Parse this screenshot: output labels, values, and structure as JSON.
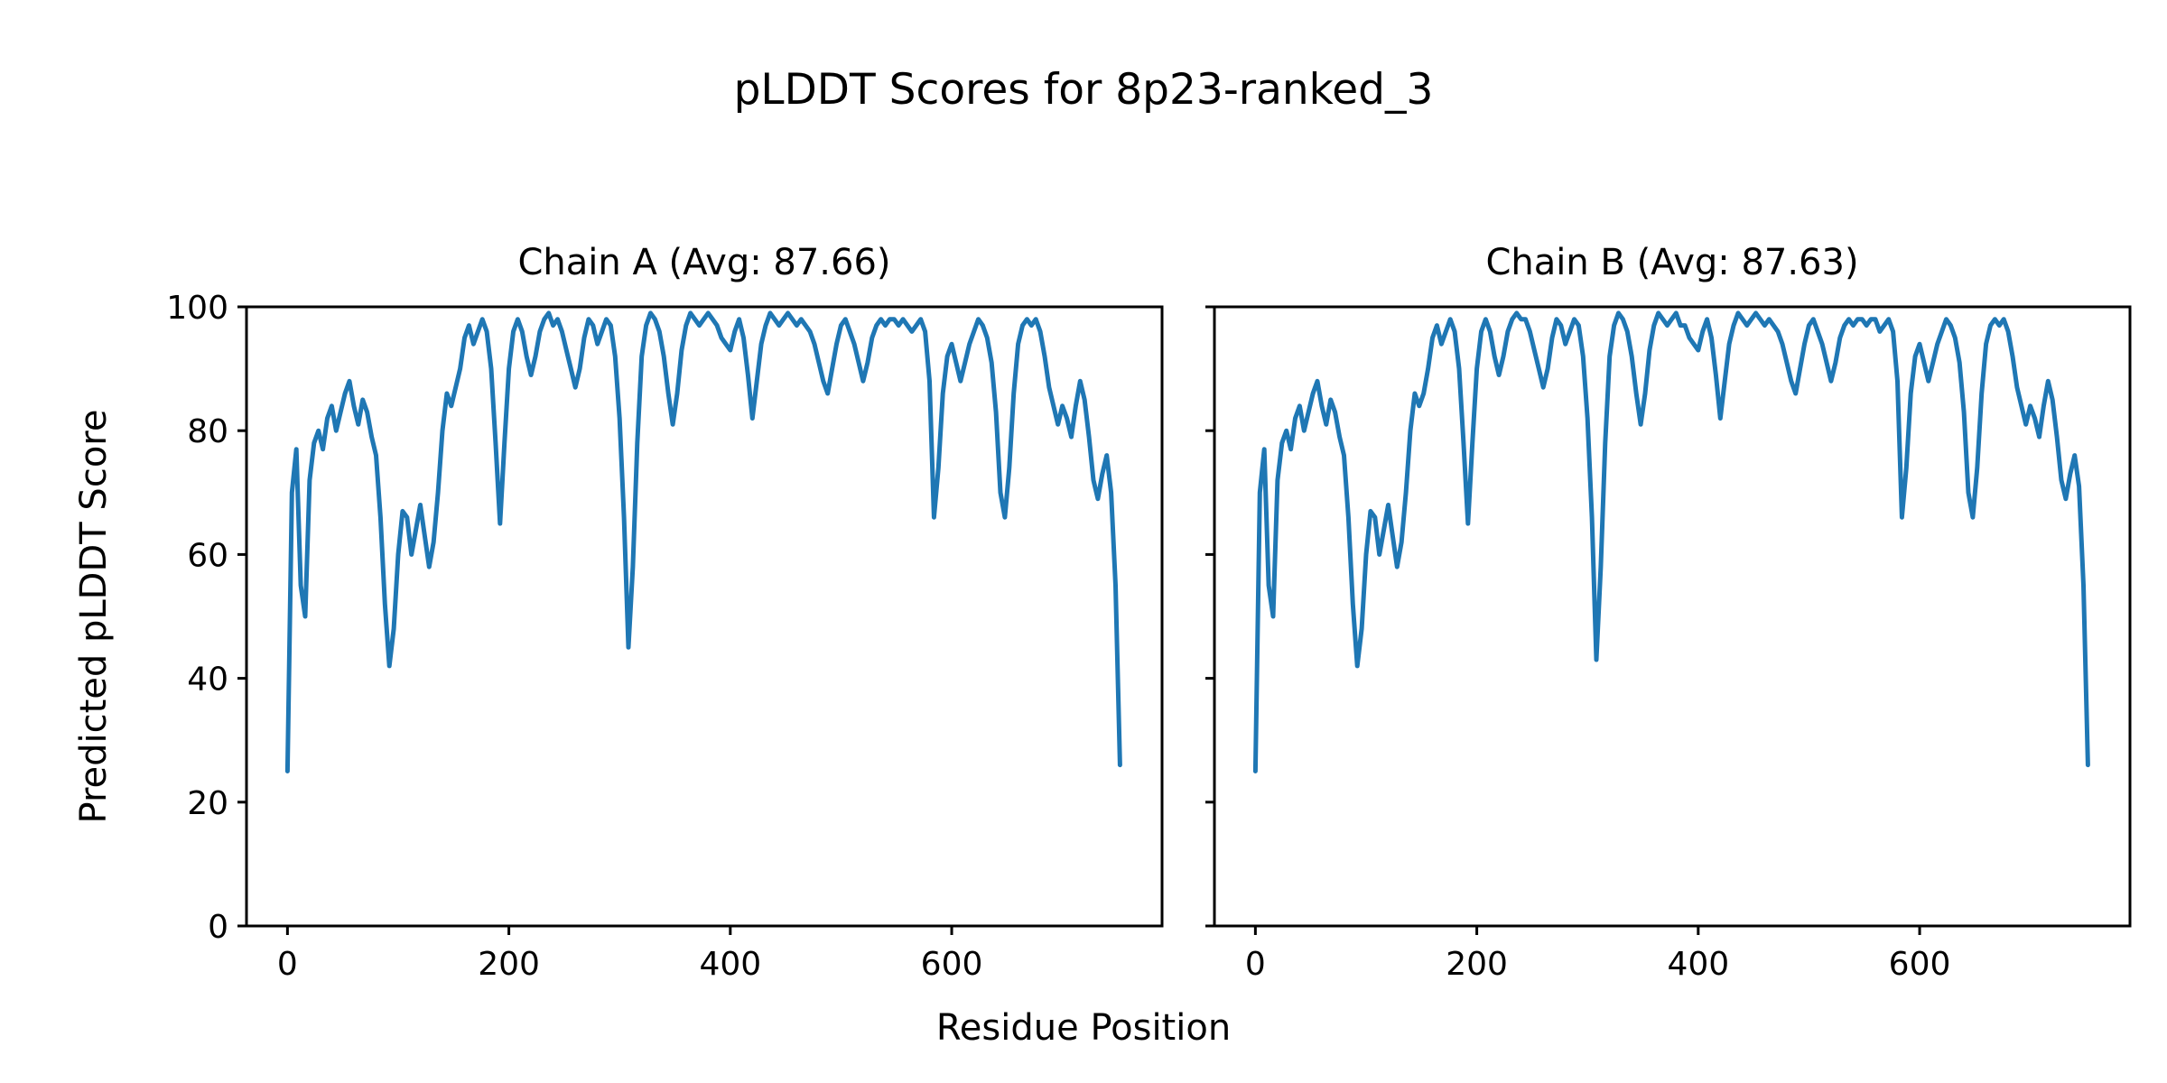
{
  "figure": {
    "suptitle": "pLDDT Scores for 8p23-ranked_3",
    "xlabel": "Residue Position",
    "ylabel": "Predicted pLDDT Score",
    "background_color": "#ffffff",
    "text_color": "#000000",
    "spine_color": "#000000"
  },
  "chart_data": [
    {
      "type": "line",
      "title": "Chain A (Avg: 87.66)",
      "series_name": "Chain A pLDDT",
      "avg": 87.66,
      "color": "#1f77b4",
      "xlabel": "Residue Position",
      "ylabel": "Predicted pLDDT Score",
      "xlim": [
        -37,
        790
      ],
      "ylim": [
        0,
        100
      ],
      "x_ticks": [
        0,
        200,
        400,
        600
      ],
      "y_ticks": [
        0,
        20,
        40,
        60,
        80,
        100
      ],
      "show_y_tick_labels": true,
      "grid": false,
      "legend": "none",
      "x": [
        0,
        4,
        8,
        12,
        16,
        20,
        24,
        28,
        32,
        36,
        40,
        44,
        48,
        52,
        56,
        60,
        64,
        68,
        72,
        76,
        80,
        84,
        88,
        92,
        96,
        100,
        104,
        108,
        112,
        116,
        120,
        124,
        128,
        132,
        136,
        140,
        144,
        148,
        152,
        156,
        160,
        164,
        168,
        172,
        176,
        180,
        184,
        188,
        192,
        196,
        200,
        204,
        208,
        212,
        216,
        220,
        224,
        228,
        232,
        236,
        240,
        244,
        248,
        252,
        256,
        260,
        264,
        268,
        272,
        276,
        280,
        284,
        288,
        292,
        296,
        300,
        304,
        308,
        312,
        316,
        320,
        324,
        328,
        332,
        336,
        340,
        344,
        348,
        352,
        356,
        360,
        364,
        368,
        372,
        376,
        380,
        384,
        388,
        392,
        396,
        400,
        404,
        408,
        412,
        416,
        420,
        424,
        428,
        432,
        436,
        440,
        444,
        448,
        452,
        456,
        460,
        464,
        468,
        472,
        476,
        480,
        484,
        488,
        492,
        496,
        500,
        504,
        508,
        512,
        516,
        520,
        524,
        528,
        532,
        536,
        540,
        544,
        548,
        552,
        556,
        560,
        564,
        568,
        572,
        576,
        580,
        584,
        588,
        592,
        596,
        600,
        604,
        608,
        612,
        616,
        620,
        624,
        628,
        632,
        636,
        640,
        644,
        648,
        652,
        656,
        660,
        664,
        668,
        672,
        676,
        680,
        684,
        688,
        692,
        696,
        700,
        704,
        708,
        712,
        716,
        720,
        724,
        728,
        732,
        736,
        740,
        744,
        748,
        752
      ],
      "y": [
        25,
        70,
        77,
        55,
        50,
        72,
        78,
        80,
        77,
        82,
        84,
        80,
        83,
        86,
        88,
        84,
        81,
        85,
        83,
        79,
        76,
        66,
        52,
        42,
        48,
        60,
        67,
        66,
        60,
        64,
        68,
        63,
        58,
        62,
        70,
        80,
        86,
        84,
        87,
        90,
        95,
        97,
        94,
        96,
        98,
        96,
        90,
        78,
        65,
        78,
        90,
        96,
        98,
        96,
        92,
        89,
        92,
        96,
        98,
        99,
        97,
        98,
        96,
        93,
        90,
        87,
        90,
        95,
        98,
        97,
        94,
        96,
        98,
        97,
        92,
        82,
        66,
        45,
        58,
        78,
        92,
        97,
        99,
        98,
        96,
        92,
        86,
        81,
        86,
        93,
        97,
        99,
        98,
        97,
        98,
        99,
        98,
        97,
        95,
        94,
        93,
        96,
        98,
        95,
        89,
        82,
        88,
        94,
        97,
        99,
        98,
        97,
        98,
        99,
        98,
        97,
        98,
        97,
        96,
        94,
        91,
        88,
        86,
        90,
        94,
        97,
        98,
        96,
        94,
        91,
        88,
        91,
        95,
        97,
        98,
        97,
        98,
        98,
        97,
        98,
        97,
        96,
        97,
        98,
        96,
        88,
        66,
        74,
        86,
        92,
        94,
        91,
        88,
        91,
        94,
        96,
        98,
        97,
        95,
        91,
        83,
        70,
        66,
        74,
        86,
        94,
        97,
        98,
        97,
        98,
        96,
        92,
        87,
        84,
        81,
        84,
        82,
        79,
        84,
        88,
        85,
        79,
        72,
        69,
        73,
        76,
        70,
        55,
        26
      ]
    },
    {
      "type": "line",
      "title": "Chain B (Avg: 87.63)",
      "series_name": "Chain B pLDDT",
      "avg": 87.63,
      "color": "#1f77b4",
      "xlabel": "Residue Position",
      "ylabel": "Predicted pLDDT Score",
      "xlim": [
        -37,
        790
      ],
      "ylim": [
        0,
        100
      ],
      "x_ticks": [
        0,
        200,
        400,
        600
      ],
      "y_ticks": [
        0,
        20,
        40,
        60,
        80,
        100
      ],
      "show_y_tick_labels": false,
      "grid": false,
      "legend": "none",
      "x": [
        0,
        4,
        8,
        12,
        16,
        20,
        24,
        28,
        32,
        36,
        40,
        44,
        48,
        52,
        56,
        60,
        64,
        68,
        72,
        76,
        80,
        84,
        88,
        92,
        96,
        100,
        104,
        108,
        112,
        116,
        120,
        124,
        128,
        132,
        136,
        140,
        144,
        148,
        152,
        156,
        160,
        164,
        168,
        172,
        176,
        180,
        184,
        188,
        192,
        196,
        200,
        204,
        208,
        212,
        216,
        220,
        224,
        228,
        232,
        236,
        240,
        244,
        248,
        252,
        256,
        260,
        264,
        268,
        272,
        276,
        280,
        284,
        288,
        292,
        296,
        300,
        304,
        308,
        312,
        316,
        320,
        324,
        328,
        332,
        336,
        340,
        344,
        348,
        352,
        356,
        360,
        364,
        368,
        372,
        376,
        380,
        384,
        388,
        392,
        396,
        400,
        404,
        408,
        412,
        416,
        420,
        424,
        428,
        432,
        436,
        440,
        444,
        448,
        452,
        456,
        460,
        464,
        468,
        472,
        476,
        480,
        484,
        488,
        492,
        496,
        500,
        504,
        508,
        512,
        516,
        520,
        524,
        528,
        532,
        536,
        540,
        544,
        548,
        552,
        556,
        560,
        564,
        568,
        572,
        576,
        580,
        584,
        588,
        592,
        596,
        600,
        604,
        608,
        612,
        616,
        620,
        624,
        628,
        632,
        636,
        640,
        644,
        648,
        652,
        656,
        660,
        664,
        668,
        672,
        676,
        680,
        684,
        688,
        692,
        696,
        700,
        704,
        708,
        712,
        716,
        720,
        724,
        728,
        732,
        736,
        740,
        744,
        748,
        752
      ],
      "y": [
        25,
        70,
        77,
        55,
        50,
        72,
        78,
        80,
        77,
        82,
        84,
        80,
        83,
        86,
        88,
        84,
        81,
        85,
        83,
        79,
        76,
        66,
        52,
        42,
        48,
        60,
        67,
        66,
        60,
        64,
        68,
        63,
        58,
        62,
        70,
        80,
        86,
        84,
        86,
        90,
        95,
        97,
        94,
        96,
        98,
        96,
        90,
        78,
        65,
        78,
        90,
        96,
        98,
        96,
        92,
        89,
        92,
        96,
        98,
        99,
        98,
        98,
        96,
        93,
        90,
        87,
        90,
        95,
        98,
        97,
        94,
        96,
        98,
        97,
        92,
        82,
        66,
        43,
        58,
        78,
        92,
        97,
        99,
        98,
        96,
        92,
        86,
        81,
        86,
        93,
        97,
        99,
        98,
        97,
        98,
        99,
        97,
        97,
        95,
        94,
        93,
        96,
        98,
        95,
        89,
        82,
        88,
        94,
        97,
        99,
        98,
        97,
        98,
        99,
        98,
        97,
        98,
        97,
        96,
        94,
        91,
        88,
        86,
        90,
        94,
        97,
        98,
        96,
        94,
        91,
        88,
        91,
        95,
        97,
        98,
        97,
        98,
        98,
        97,
        98,
        98,
        96,
        97,
        98,
        96,
        88,
        66,
        74,
        86,
        92,
        94,
        91,
        88,
        91,
        94,
        96,
        98,
        97,
        95,
        91,
        83,
        70,
        66,
        74,
        86,
        94,
        97,
        98,
        97,
        98,
        96,
        92,
        87,
        84,
        81,
        84,
        82,
        79,
        84,
        88,
        85,
        79,
        72,
        69,
        73,
        76,
        71,
        55,
        26
      ]
    }
  ]
}
